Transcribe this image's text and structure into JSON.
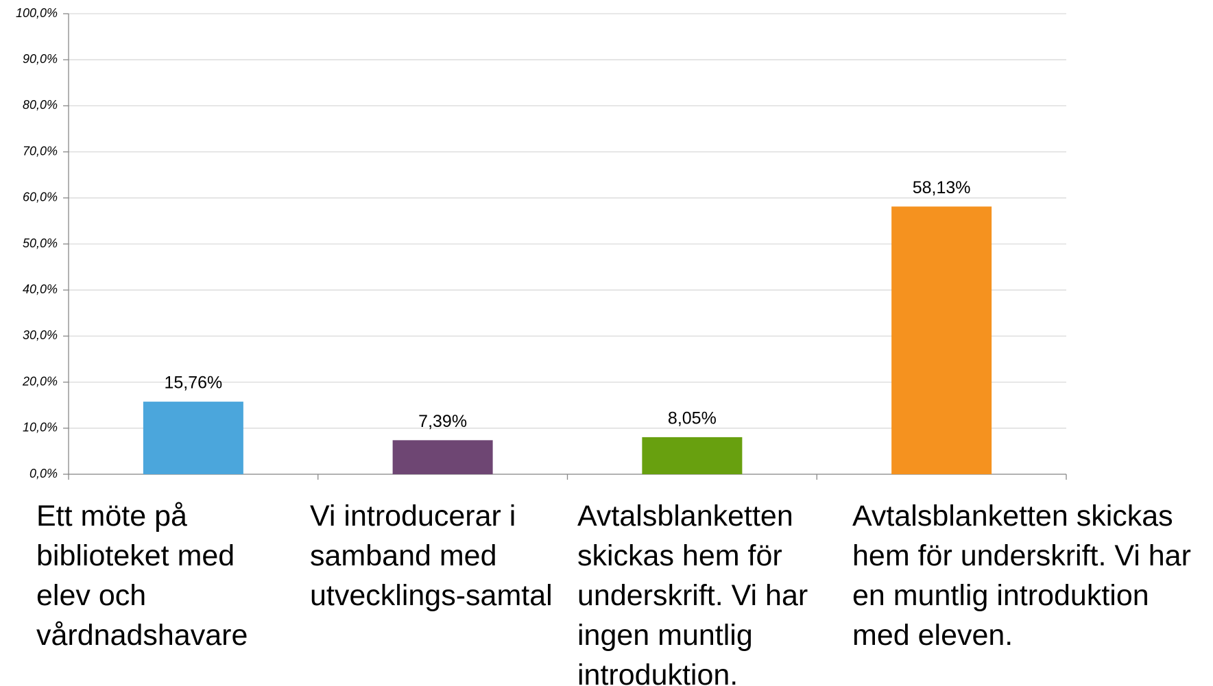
{
  "chart_data": {
    "type": "bar",
    "categories": [
      "Ett möte på biblioteket med elev och vårdnadshavare",
      "Vi introducerar i samband med utvecklings-samtal",
      "Avtalsblanketten skickas hem för underskrift. Vi har ingen muntlig introduktion.",
      "Avtalsblanketten skickas hem för underskrift. Vi har en muntlig introduktion med eleven."
    ],
    "values": [
      15.76,
      7.39,
      8.05,
      58.13
    ],
    "value_labels": [
      "15,76%",
      "7,39%",
      "8,05%",
      "58,13%"
    ],
    "colors": [
      "#4ba6dc",
      "#6e4673",
      "#68a00f",
      "#f5921f"
    ],
    "ylim": [
      0,
      100
    ],
    "yticks": [
      {
        "value": 0,
        "label": "0,0%"
      },
      {
        "value": 10,
        "label": "10,0%"
      },
      {
        "value": 20,
        "label": "20,0%"
      },
      {
        "value": 30,
        "label": "30,0%"
      },
      {
        "value": 40,
        "label": "40,0%"
      },
      {
        "value": 50,
        "label": "50,0%"
      },
      {
        "value": 60,
        "label": "60,0%"
      },
      {
        "value": 70,
        "label": "70,0%"
      },
      {
        "value": 80,
        "label": "80,0%"
      },
      {
        "value": 90,
        "label": "90,0%"
      },
      {
        "value": 100,
        "label": "100,0%"
      }
    ],
    "grid": true
  }
}
